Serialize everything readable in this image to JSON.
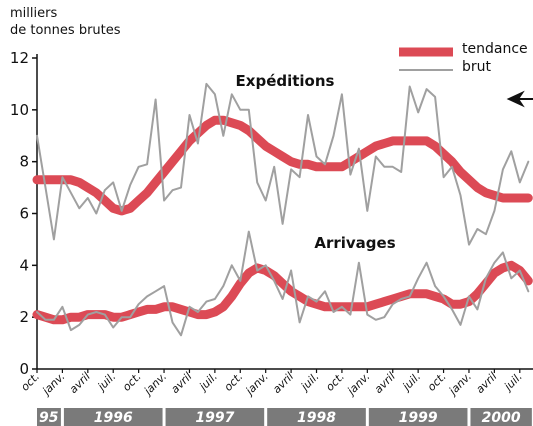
{
  "chart_data": {
    "type": "line",
    "y_axis_label": [
      "milliers",
      "de tonnes brutes"
    ],
    "categories": [
      "oct.",
      null,
      null,
      "janv.",
      null,
      null,
      "avril",
      null,
      null,
      "juil.",
      null,
      null,
      "oct.",
      null,
      null,
      "janv.",
      null,
      null,
      "avril",
      null,
      null,
      "juil.",
      null,
      null,
      "oct.",
      null,
      null,
      "janv.",
      null,
      null,
      "avril",
      null,
      null,
      "juil.",
      null,
      null,
      "oct.",
      null,
      null,
      "janv.",
      null,
      null,
      "avril",
      null,
      null,
      "juil.",
      null,
      null,
      "oct.",
      null,
      null,
      "janv.",
      null,
      null,
      "avril",
      null,
      null,
      "juil.",
      null
    ],
    "years": [
      "95",
      "1996",
      "1997",
      "1998",
      "1999",
      "2000"
    ],
    "series": [
      {
        "name": "tendance",
        "color": "#dc4a55"
      },
      {
        "name": "brut",
        "color": "#a0a0a0"
      }
    ],
    "groups": [
      {
        "label": "Expéditions",
        "lines": [
          [
            7.3,
            7.3,
            7.3,
            7.3,
            7.3,
            7.2,
            7.0,
            6.8,
            6.5,
            6.2,
            6.1,
            6.2,
            6.5,
            6.8,
            7.2,
            7.6,
            8.0,
            8.4,
            8.8,
            9.1,
            9.4,
            9.6,
            9.6,
            9.5,
            9.4,
            9.2,
            8.9,
            8.6,
            8.4,
            8.2,
            8.0,
            7.9,
            7.9,
            7.8,
            7.8,
            7.8,
            7.8,
            8.0,
            8.2,
            8.4,
            8.6,
            8.7,
            8.8,
            8.8,
            8.8,
            8.8,
            8.8,
            8.6,
            8.3,
            8.0,
            7.6,
            7.3,
            7.0,
            6.8,
            6.7,
            6.6,
            6.6,
            6.6,
            6.6
          ],
          [
            9.0,
            7.0,
            5.0,
            7.4,
            6.8,
            6.2,
            6.6,
            6.0,
            6.9,
            7.2,
            6.1,
            7.1,
            7.8,
            7.9,
            10.4,
            6.5,
            6.9,
            7.0,
            9.8,
            8.7,
            11.0,
            10.6,
            9.0,
            10.6,
            10.0,
            10.0,
            7.2,
            6.5,
            7.8,
            5.6,
            7.7,
            7.4,
            9.8,
            8.2,
            7.9,
            9.0,
            10.6,
            7.5,
            8.5,
            6.1,
            8.2,
            7.8,
            7.8,
            7.6,
            10.9,
            9.9,
            10.8,
            10.5,
            7.4,
            7.8,
            6.7,
            4.8,
            5.4,
            5.2,
            6.1,
            7.7,
            8.4,
            7.2,
            8.0
          ]
        ]
      },
      {
        "label": "Arrivages",
        "lines": [
          [
            2.1,
            2.0,
            1.9,
            1.9,
            2.0,
            2.0,
            2.1,
            2.1,
            2.1,
            2.0,
            2.0,
            2.1,
            2.2,
            2.3,
            2.3,
            2.4,
            2.4,
            2.3,
            2.2,
            2.1,
            2.1,
            2.2,
            2.4,
            2.8,
            3.3,
            3.7,
            3.9,
            3.8,
            3.6,
            3.3,
            3.0,
            2.8,
            2.6,
            2.5,
            2.4,
            2.4,
            2.4,
            2.4,
            2.4,
            2.4,
            2.5,
            2.6,
            2.7,
            2.8,
            2.9,
            2.9,
            2.9,
            2.8,
            2.7,
            2.5,
            2.5,
            2.6,
            2.9,
            3.3,
            3.7,
            3.9,
            4.0,
            3.8,
            3.4
          ],
          [
            2.2,
            1.9,
            1.9,
            2.4,
            1.5,
            1.7,
            2.1,
            2.2,
            2.1,
            1.6,
            2.0,
            2.0,
            2.5,
            2.8,
            3.0,
            3.2,
            1.8,
            1.3,
            2.4,
            2.2,
            2.6,
            2.7,
            3.2,
            4.0,
            3.4,
            5.3,
            3.8,
            4.0,
            3.4,
            2.7,
            3.8,
            1.8,
            2.8,
            2.6,
            3.0,
            2.2,
            2.4,
            2.1,
            4.1,
            2.1,
            1.9,
            2.0,
            2.5,
            2.7,
            2.8,
            3.5,
            4.1,
            3.2,
            2.8,
            2.3,
            1.7,
            2.8,
            2.3,
            3.5,
            4.1,
            4.5,
            3.5,
            3.8,
            3.0
          ]
        ]
      }
    ],
    "ylim": [
      0,
      12
    ],
    "yticks": [
      0,
      2,
      4,
      6,
      8,
      10,
      12
    ]
  }
}
